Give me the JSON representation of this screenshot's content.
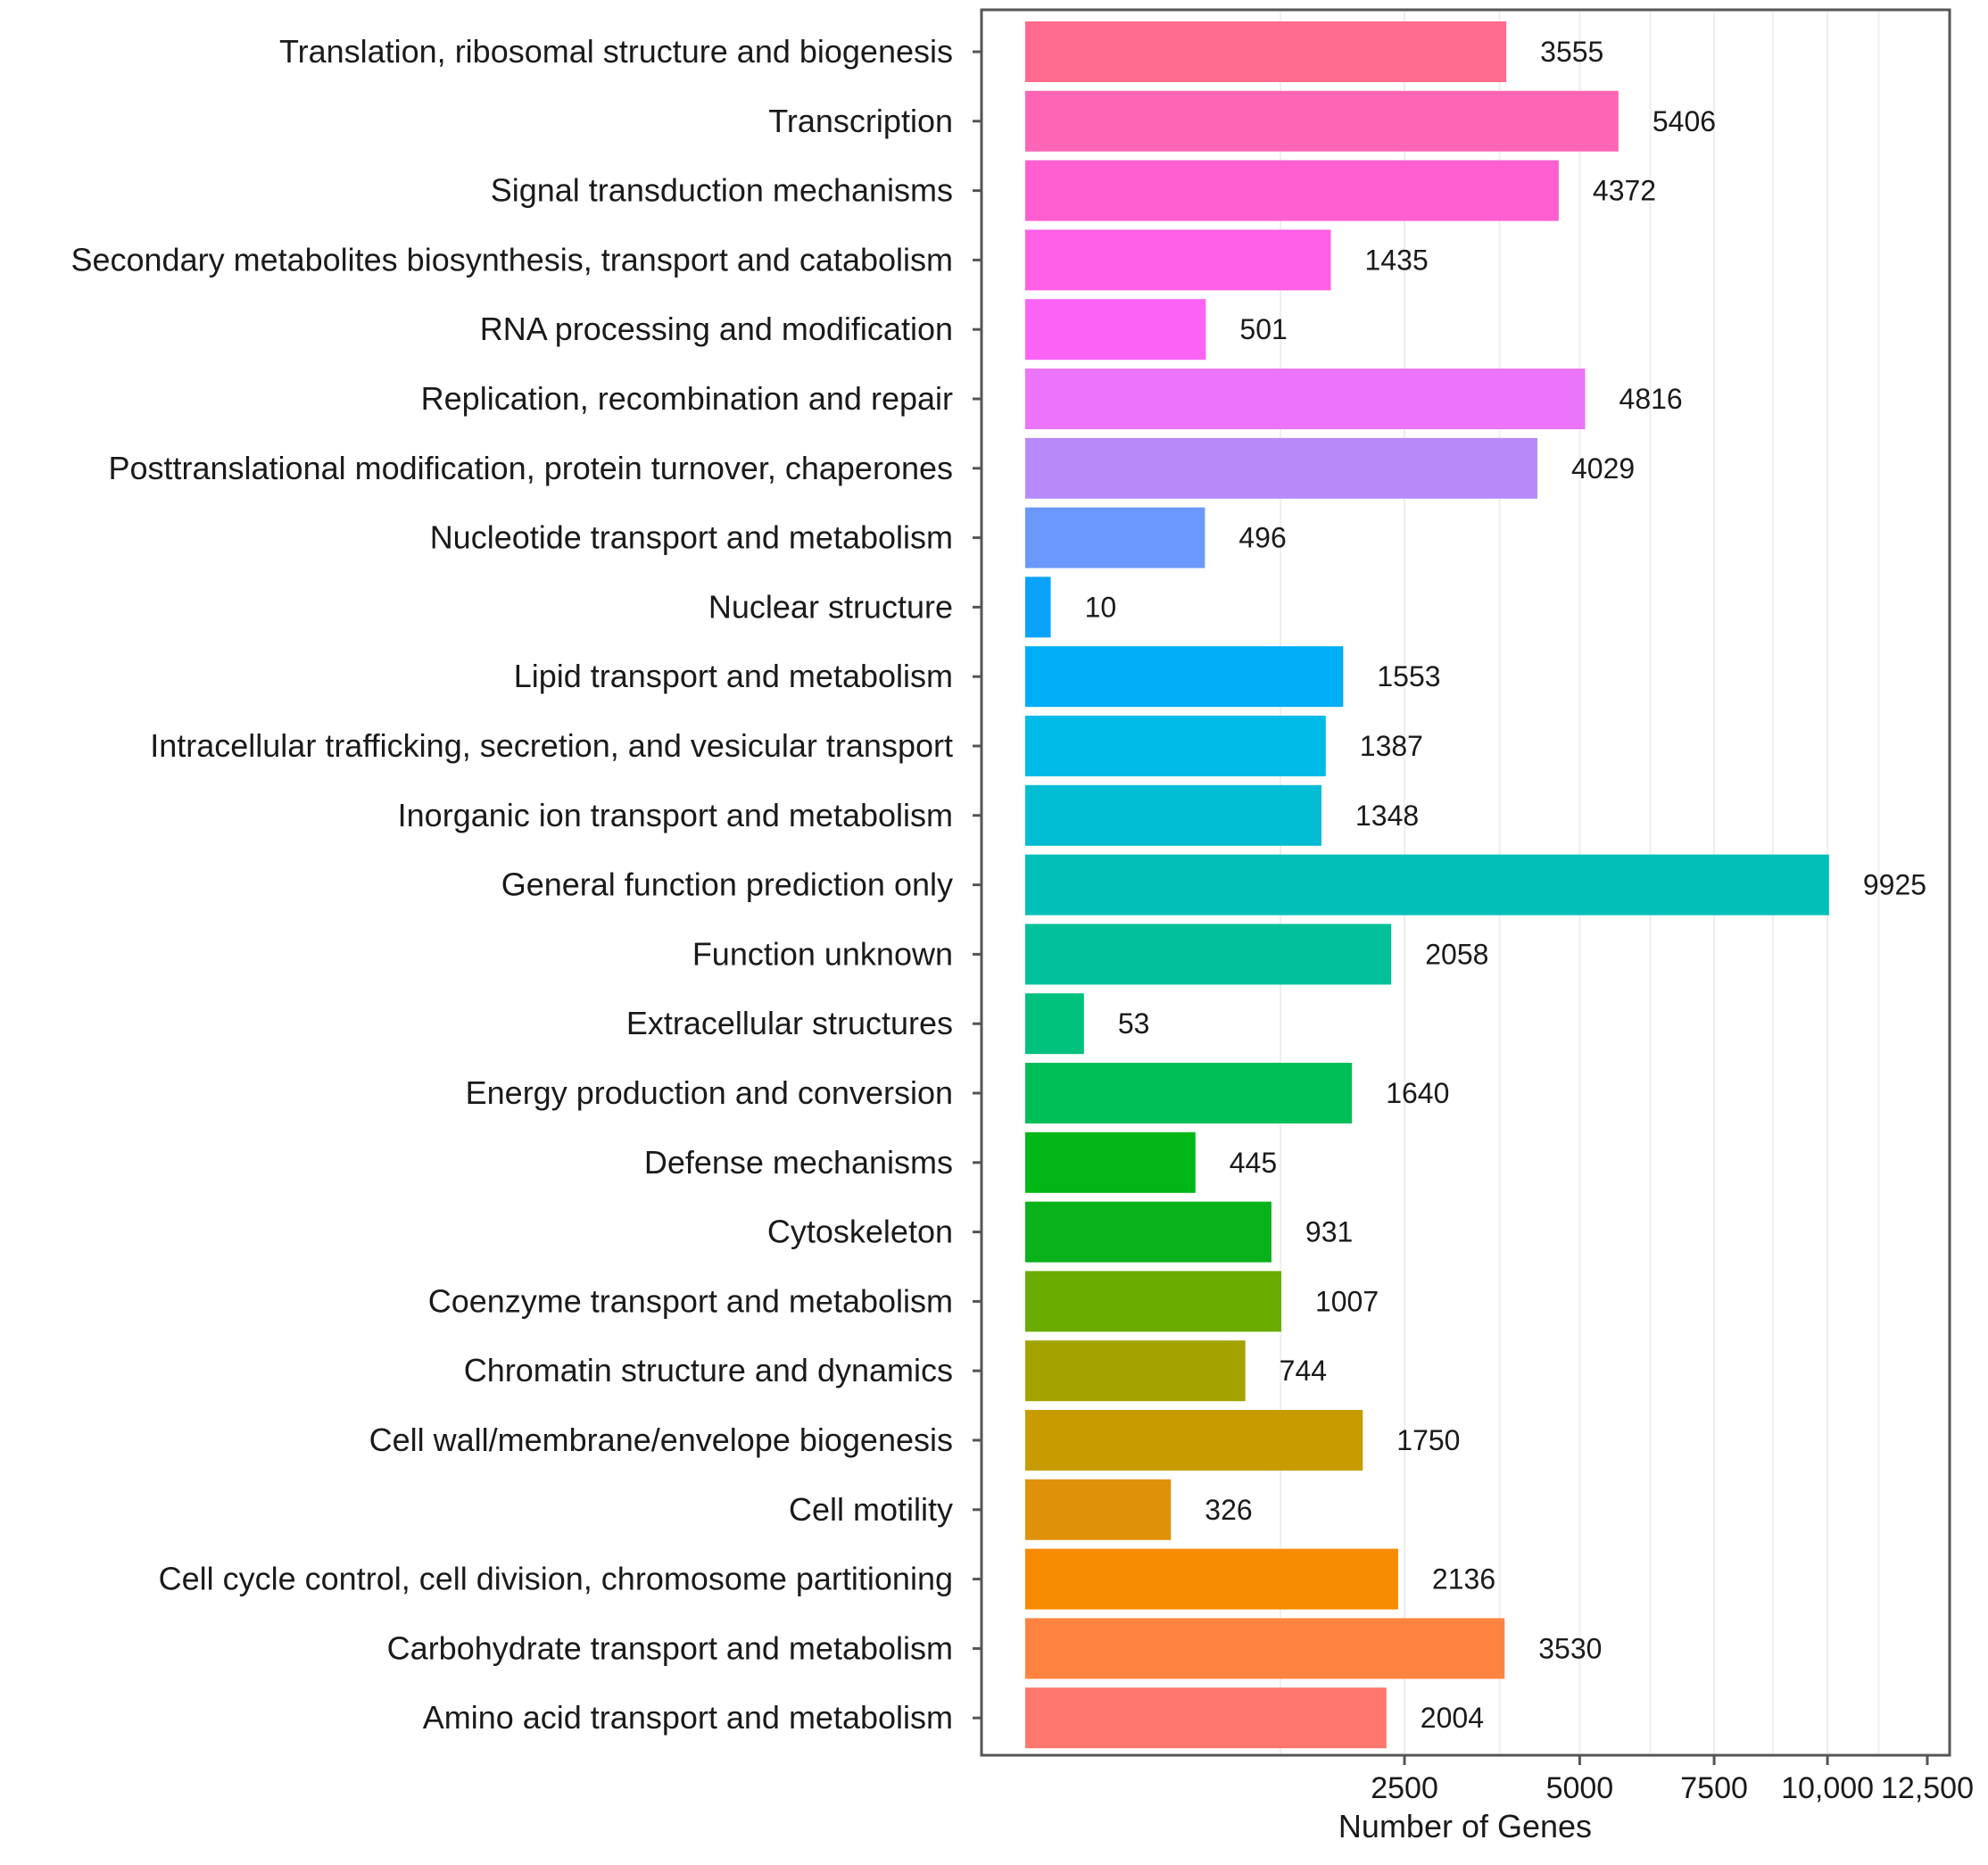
{
  "chart_data": {
    "type": "bar",
    "orientation": "horizontal",
    "title": "",
    "xlabel": "Number of Genes",
    "ylabel": "",
    "x_scale": "sqrt",
    "xlim": [
      0,
      12500
    ],
    "x_ticks": [
      2500,
      5000,
      7500,
      10000,
      12500
    ],
    "x_tick_labels": [
      "2500",
      "5000",
      "7500",
      "10,000",
      "12,500"
    ],
    "grid": "vertical minor gridlines",
    "legend": "none",
    "categories": [
      "Translation, ribosomal structure and biogenesis",
      "Transcription",
      "Signal transduction mechanisms",
      "Secondary metabolites biosynthesis, transport and catabolism",
      "RNA processing and modification",
      "Replication, recombination and repair",
      "Posttranslational modification, protein turnover, chaperones",
      "Nucleotide transport and metabolism",
      "Nuclear structure",
      "Lipid transport and metabolism",
      "Intracellular trafficking, secretion, and vesicular transport",
      "Inorganic ion transport and metabolism",
      "General function prediction only",
      "Function unknown",
      "Extracellular structures",
      "Energy production and conversion",
      "Defense mechanisms",
      "Cytoskeleton",
      "Coenzyme transport and metabolism",
      "Chromatin structure and dynamics",
      "Cell wall/membrane/envelope biogenesis",
      "Cell motility",
      "Cell cycle control, cell division, chromosome partitioning",
      "Carbohydrate transport and metabolism",
      "Amino acid transport and metabolism"
    ],
    "values": [
      3555,
      5406,
      4372,
      1435,
      501,
      4816,
      4029,
      496,
      10,
      1553,
      1387,
      1348,
      9925,
      2058,
      53,
      1640,
      445,
      931,
      1007,
      744,
      1750,
      326,
      2136,
      3530,
      2004
    ],
    "colors": [
      "#ff6b8f",
      "#ff65b5",
      "#ff5fd0",
      "#ff60e6",
      "#fc63f5",
      "#ec74fa",
      "#b78af9",
      "#6b99fb",
      "#0aa3fb",
      "#00adf7",
      "#00bae8",
      "#00bdd3",
      "#00c0b7",
      "#00c19a",
      "#00c27d",
      "#00bf57",
      "#00b717",
      "#07b21a",
      "#6aac00",
      "#a3a300",
      "#c89c00",
      "#e0910a",
      "#f68b00",
      "#ff8340",
      "#ff776d"
    ]
  }
}
